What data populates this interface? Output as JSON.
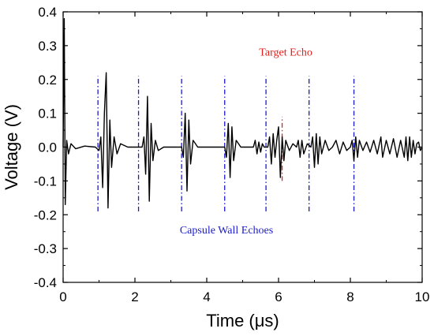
{
  "chart_data": {
    "type": "line",
    "title": "",
    "xlabel": "Time (μs)",
    "ylabel": "Voltage (V)",
    "xlim": [
      0,
      10
    ],
    "ylim": [
      -0.4,
      0.4
    ],
    "x_ticks": [
      "0",
      "2",
      "4",
      "6",
      "8",
      "10"
    ],
    "y_ticks": [
      "0.4",
      "0.3",
      "0.2",
      "0.1",
      "0.0",
      "-0.1",
      "-0.2",
      "-0.3",
      "-0.4"
    ],
    "grid": false,
    "series": [
      {
        "color": "#000000",
        "points": [
          [
            0.0,
            0.0
          ],
          [
            0.03,
            0.38
          ],
          [
            0.06,
            -0.17
          ],
          [
            0.1,
            0.02
          ],
          [
            0.15,
            -0.02
          ],
          [
            0.22,
            0.01
          ],
          [
            0.35,
            -0.005
          ],
          [
            0.6,
            0.003
          ],
          [
            0.9,
            0.0
          ],
          [
            1.0,
            -0.01
          ],
          [
            1.05,
            0.03
          ],
          [
            1.1,
            -0.12
          ],
          [
            1.15,
            0.1
          ],
          [
            1.2,
            0.22
          ],
          [
            1.25,
            -0.18
          ],
          [
            1.3,
            0.08
          ],
          [
            1.35,
            -0.06
          ],
          [
            1.42,
            0.03
          ],
          [
            1.5,
            -0.02
          ],
          [
            1.6,
            0.01
          ],
          [
            1.8,
            0.0
          ],
          [
            2.2,
            0.0
          ],
          [
            2.25,
            0.03
          ],
          [
            2.3,
            -0.08
          ],
          [
            2.35,
            0.15
          ],
          [
            2.4,
            -0.16
          ],
          [
            2.45,
            0.07
          ],
          [
            2.5,
            -0.04
          ],
          [
            2.57,
            0.02
          ],
          [
            2.65,
            -0.01
          ],
          [
            2.8,
            0.0
          ],
          [
            3.3,
            0.0
          ],
          [
            3.35,
            -0.03
          ],
          [
            3.4,
            0.1
          ],
          [
            3.45,
            -0.13
          ],
          [
            3.5,
            0.08
          ],
          [
            3.55,
            -0.05
          ],
          [
            3.62,
            0.02
          ],
          [
            3.75,
            0.0
          ],
          [
            4.5,
            0.0
          ],
          [
            4.55,
            -0.03
          ],
          [
            4.6,
            0.07
          ],
          [
            4.65,
            -0.09
          ],
          [
            4.7,
            0.06
          ],
          [
            4.75,
            -0.04
          ],
          [
            4.82,
            0.02
          ],
          [
            4.95,
            0.0
          ],
          [
            5.3,
            0.0
          ],
          [
            5.35,
            0.02
          ],
          [
            5.4,
            -0.02
          ],
          [
            5.45,
            0.015
          ],
          [
            5.5,
            -0.015
          ],
          [
            5.55,
            0.01
          ],
          [
            5.6,
            0.0
          ],
          [
            5.7,
            0.0
          ],
          [
            5.75,
            0.03
          ],
          [
            5.8,
            -0.05
          ],
          [
            5.85,
            0.04
          ],
          [
            5.9,
            -0.03
          ],
          [
            5.95,
            0.02
          ],
          [
            6.0,
            0.06
          ],
          [
            6.05,
            -0.09
          ],
          [
            6.1,
            0.03
          ],
          [
            6.15,
            -0.04
          ],
          [
            6.2,
            0.02
          ],
          [
            6.3,
            -0.01
          ],
          [
            6.4,
            0.01
          ],
          [
            6.5,
            0.0
          ],
          [
            6.55,
            0.02
          ],
          [
            6.6,
            -0.03
          ],
          [
            6.65,
            0.02
          ],
          [
            6.7,
            -0.02
          ],
          [
            6.8,
            0.01
          ],
          [
            6.9,
            0.0
          ],
          [
            6.95,
            0.03
          ],
          [
            7.0,
            -0.06
          ],
          [
            7.05,
            0.04
          ],
          [
            7.1,
            -0.05
          ],
          [
            7.15,
            0.03
          ],
          [
            7.2,
            -0.02
          ],
          [
            7.3,
            0.02
          ],
          [
            7.4,
            -0.01
          ],
          [
            7.5,
            0.0
          ],
          [
            7.6,
            0.02
          ],
          [
            7.7,
            -0.02
          ],
          [
            7.8,
            0.015
          ],
          [
            7.9,
            -0.01
          ],
          [
            8.0,
            0.0
          ],
          [
            8.05,
            0.02
          ],
          [
            8.1,
            -0.04
          ],
          [
            8.15,
            0.03
          ],
          [
            8.2,
            -0.03
          ],
          [
            8.25,
            0.02
          ],
          [
            8.35,
            -0.01
          ],
          [
            8.45,
            0.015
          ],
          [
            8.55,
            -0.015
          ],
          [
            8.65,
            0.02
          ],
          [
            8.75,
            -0.02
          ],
          [
            8.85,
            0.03
          ],
          [
            8.9,
            -0.03
          ],
          [
            9.0,
            0.02
          ],
          [
            9.1,
            -0.02
          ],
          [
            9.2,
            0.025
          ],
          [
            9.3,
            -0.03
          ],
          [
            9.4,
            0.02
          ],
          [
            9.5,
            -0.03
          ],
          [
            9.55,
            0.03
          ],
          [
            9.6,
            -0.04
          ],
          [
            9.65,
            0.03
          ],
          [
            9.7,
            -0.03
          ],
          [
            9.75,
            0.02
          ],
          [
            9.8,
            -0.02
          ],
          [
            9.85,
            0.01
          ],
          [
            9.9,
            0.015
          ],
          [
            9.95,
            -0.01
          ],
          [
            10.0,
            0.0
          ]
        ]
      }
    ],
    "reference_lines": [
      {
        "x": 0.97,
        "y_from": -0.19,
        "y_to": 0.21,
        "color": "#1a1acc",
        "group": "wall"
      },
      {
        "x": 2.1,
        "y_from": -0.19,
        "y_to": 0.21,
        "color": "#1a1acc",
        "group": "wall"
      },
      {
        "x": 3.3,
        "y_from": -0.19,
        "y_to": 0.21,
        "color": "#1a1acc",
        "group": "wall"
      },
      {
        "x": 4.5,
        "y_from": -0.19,
        "y_to": 0.21,
        "color": "#1a1acc",
        "group": "wall"
      },
      {
        "x": 5.65,
        "y_from": -0.19,
        "y_to": 0.21,
        "color": "#1a1acc",
        "group": "wall"
      },
      {
        "x": 6.85,
        "y_from": -0.19,
        "y_to": 0.21,
        "color": "#1a1acc",
        "group": "wall"
      },
      {
        "x": 8.1,
        "y_from": -0.19,
        "y_to": 0.21,
        "color": "#1a1acc",
        "group": "wall"
      },
      {
        "x": 6.1,
        "y_from": -0.1,
        "y_to": 0.09,
        "color": "#e0201c",
        "group": "target"
      }
    ],
    "annotations": [
      {
        "text": "Target Echo",
        "x": 6.2,
        "y": 0.27,
        "color": "#e0201c"
      },
      {
        "text": "Capsule Wall Echoes",
        "x": 4.55,
        "y": -0.255,
        "color": "#1a1acc"
      }
    ]
  }
}
